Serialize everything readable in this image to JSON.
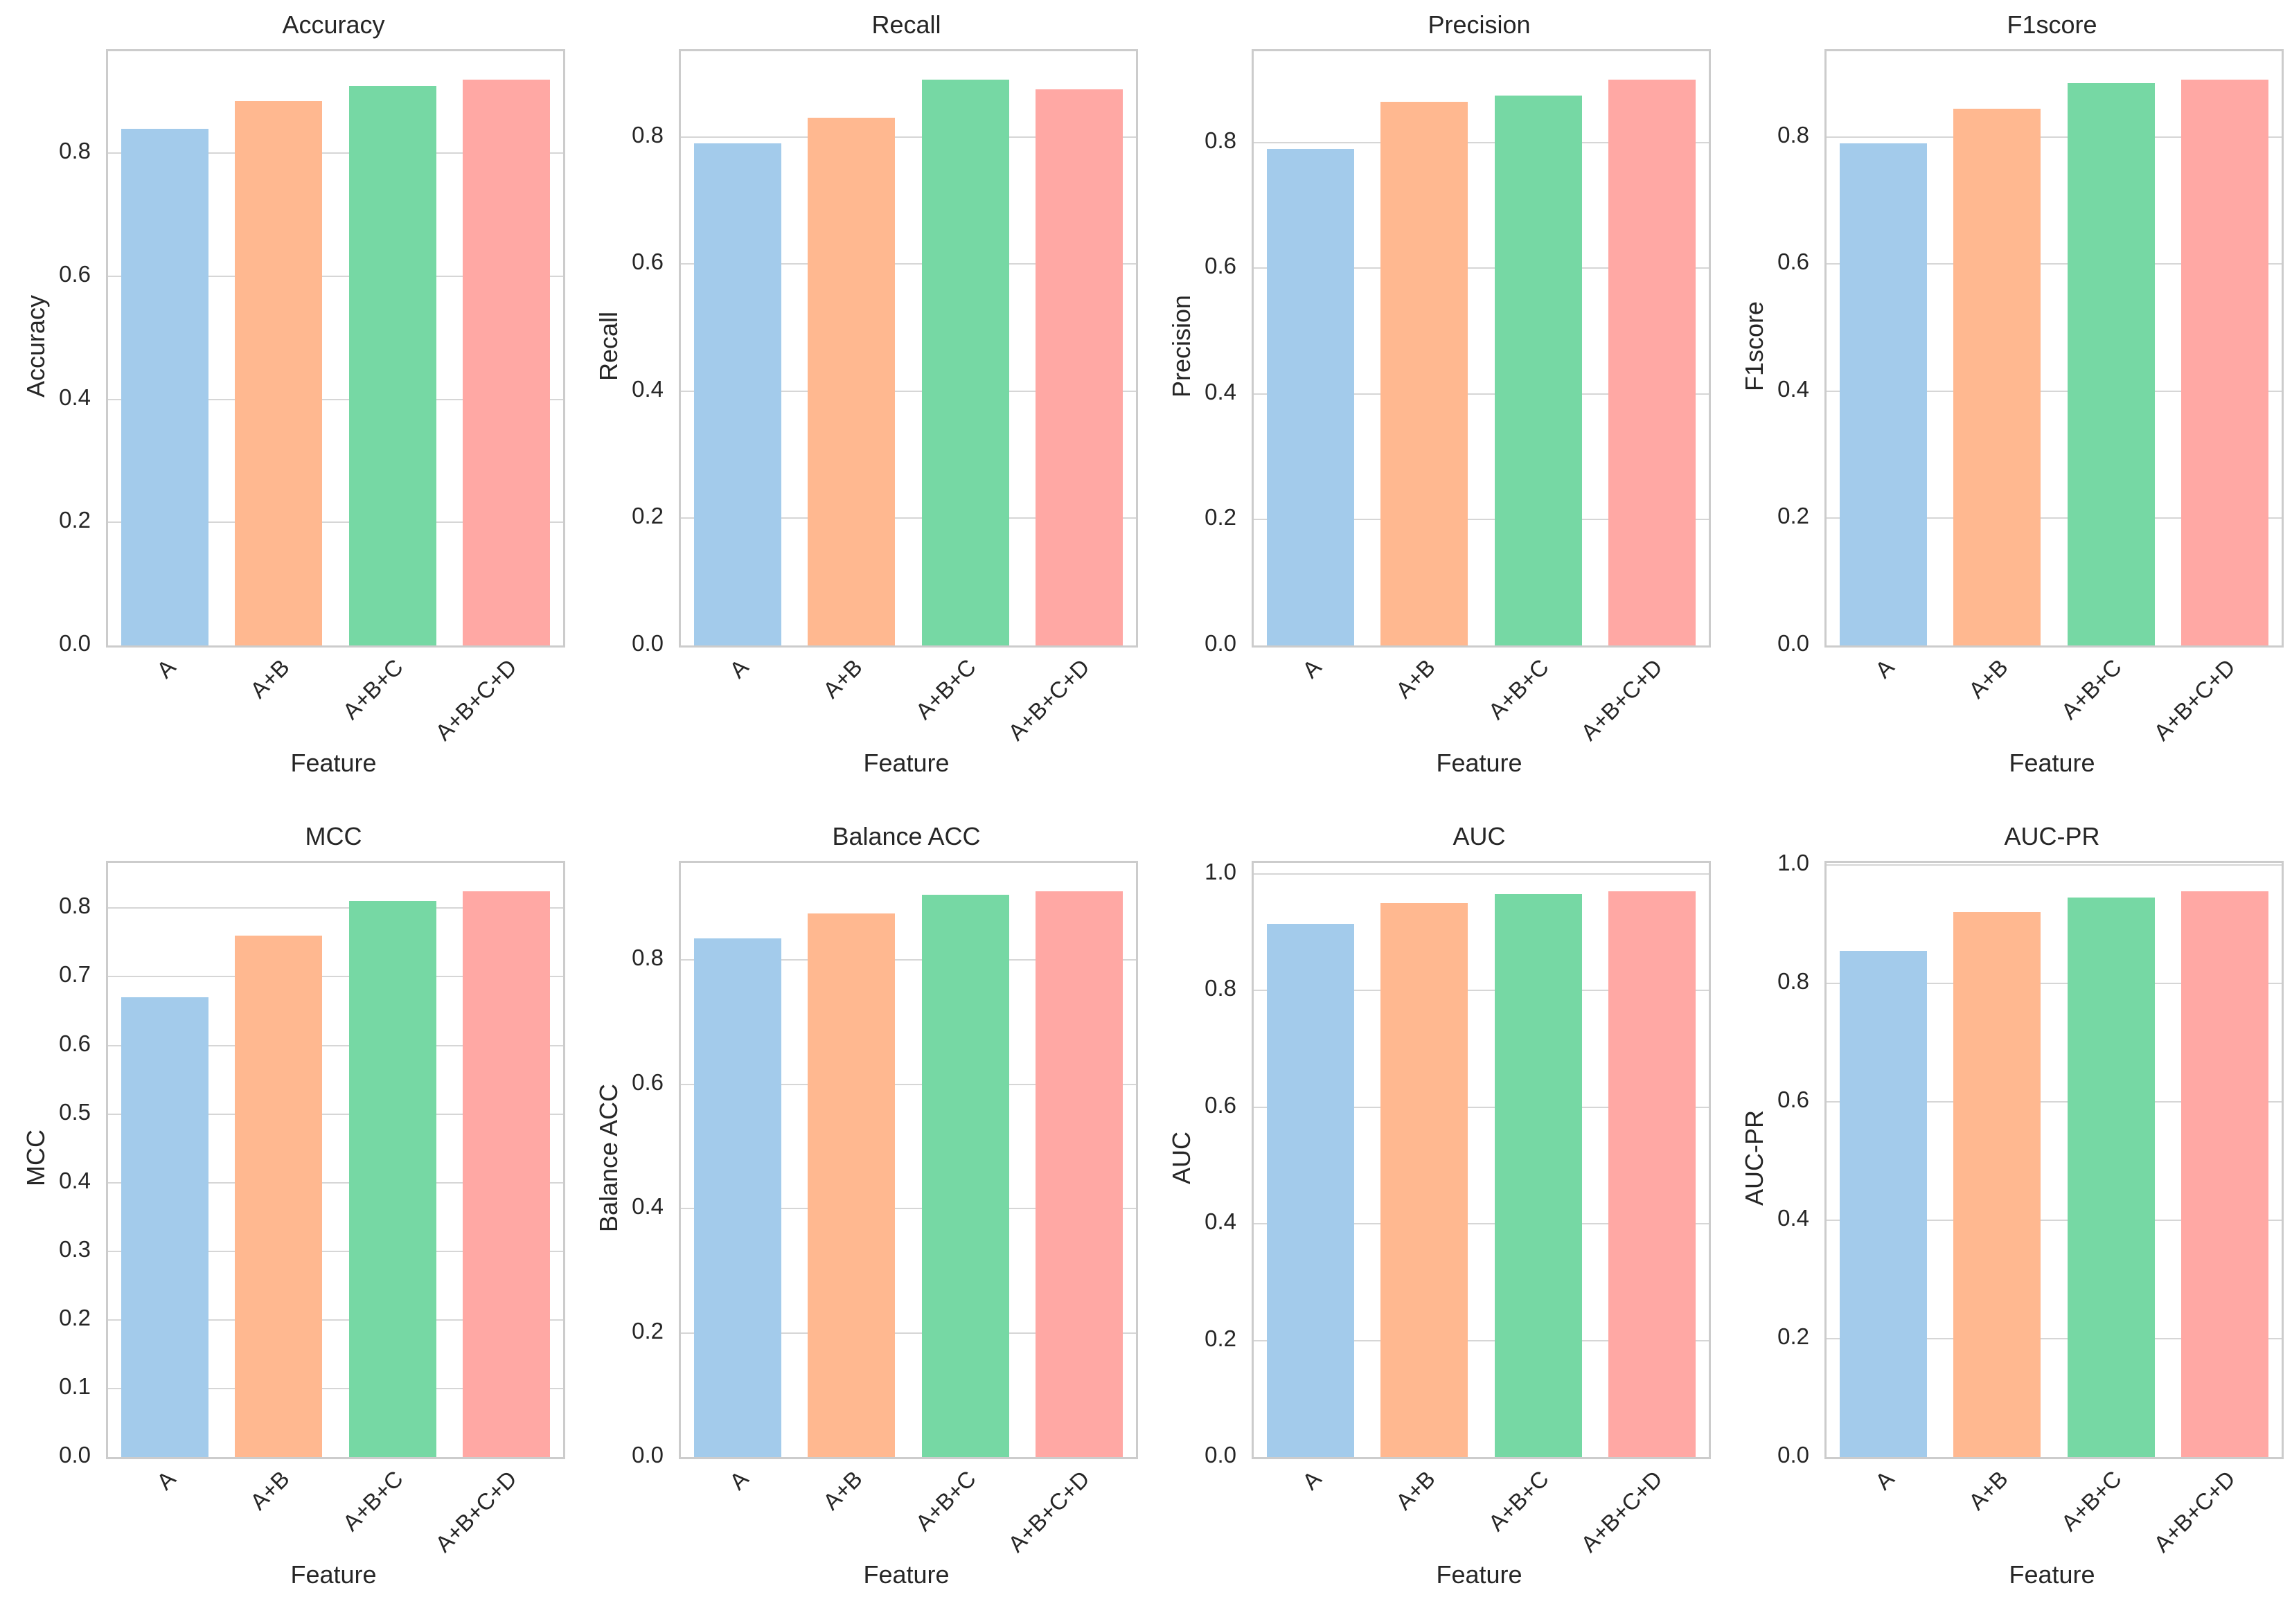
{
  "figure": {
    "background": "#ffffff",
    "grid_color": "#d6d6d6",
    "spine_color": "#cccccc",
    "text_color": "#262626",
    "bar_colors": [
      "#a3cbeb",
      "#ffb890",
      "#76d8a4",
      "#ffa8a4"
    ]
  },
  "chart_data": [
    {
      "type": "bar",
      "title": "Accuracy",
      "xlabel": "Feature",
      "ylabel": "Accuracy",
      "categories": [
        "A",
        "A+B",
        "A+B+C",
        "A+B+C+D"
      ],
      "values": [
        0.84,
        0.885,
        0.91,
        0.92
      ],
      "ylim": [
        0,
        0.966
      ],
      "yticks": [
        0.0,
        0.2,
        0.4,
        0.6,
        0.8
      ],
      "grid": true,
      "legend": null,
      "xtick_rotation": 45
    },
    {
      "type": "bar",
      "title": "Recall",
      "xlabel": "Feature",
      "ylabel": "Recall",
      "categories": [
        "A",
        "A+B",
        "A+B+C",
        "A+B+C+D"
      ],
      "values": [
        0.79,
        0.83,
        0.89,
        0.875
      ],
      "ylim": [
        0,
        0.935
      ],
      "yticks": [
        0.0,
        0.2,
        0.4,
        0.6,
        0.8
      ],
      "grid": true,
      "legend": null,
      "xtick_rotation": 45
    },
    {
      "type": "bar",
      "title": "Precision",
      "xlabel": "Feature",
      "ylabel": "Precision",
      "categories": [
        "A",
        "A+B",
        "A+B+C",
        "A+B+C+D"
      ],
      "values": [
        0.79,
        0.865,
        0.875,
        0.9
      ],
      "ylim": [
        0,
        0.945
      ],
      "yticks": [
        0.0,
        0.2,
        0.4,
        0.6,
        0.8
      ],
      "grid": true,
      "legend": null,
      "xtick_rotation": 45
    },
    {
      "type": "bar",
      "title": "F1score",
      "xlabel": "Feature",
      "ylabel": "F1score",
      "categories": [
        "A",
        "A+B",
        "A+B+C",
        "A+B+C+D"
      ],
      "values": [
        0.79,
        0.845,
        0.885,
        0.89
      ],
      "ylim": [
        0,
        0.935
      ],
      "yticks": [
        0.0,
        0.2,
        0.4,
        0.6,
        0.8
      ],
      "grid": true,
      "legend": null,
      "xtick_rotation": 45
    },
    {
      "type": "bar",
      "title": "MCC",
      "xlabel": "Feature",
      "ylabel": "MCC",
      "categories": [
        "A",
        "A+B",
        "A+B+C",
        "A+B+C+D"
      ],
      "values": [
        0.67,
        0.76,
        0.81,
        0.825
      ],
      "ylim": [
        0,
        0.866
      ],
      "yticks": [
        0.0,
        0.1,
        0.2,
        0.3,
        0.4,
        0.5,
        0.6,
        0.7,
        0.8
      ],
      "grid": true,
      "legend": null,
      "xtick_rotation": 45
    },
    {
      "type": "bar",
      "title": "Balance ACC",
      "xlabel": "Feature",
      "ylabel": "Balance ACC",
      "categories": [
        "A",
        "A+B",
        "A+B+C",
        "A+B+C+D"
      ],
      "values": [
        0.835,
        0.875,
        0.905,
        0.91
      ],
      "ylim": [
        0,
        0.956
      ],
      "yticks": [
        0.0,
        0.2,
        0.4,
        0.6,
        0.8
      ],
      "grid": true,
      "legend": null,
      "xtick_rotation": 45
    },
    {
      "type": "bar",
      "title": "AUC",
      "xlabel": "Feature",
      "ylabel": "AUC",
      "categories": [
        "A",
        "A+B",
        "A+B+C",
        "A+B+C+D"
      ],
      "values": [
        0.915,
        0.95,
        0.965,
        0.97
      ],
      "ylim": [
        0,
        1.019
      ],
      "yticks": [
        0.0,
        0.2,
        0.4,
        0.6,
        0.8,
        1.0
      ],
      "grid": true,
      "legend": null,
      "xtick_rotation": 45
    },
    {
      "type": "bar",
      "title": "AUC-PR",
      "xlabel": "Feature",
      "ylabel": "AUC-PR",
      "categories": [
        "A",
        "A+B",
        "A+B+C",
        "A+B+C+D"
      ],
      "values": [
        0.855,
        0.92,
        0.945,
        0.955
      ],
      "ylim": [
        0,
        1.003
      ],
      "yticks": [
        0.0,
        0.2,
        0.4,
        0.6,
        0.8,
        1.0
      ],
      "grid": true,
      "legend": null,
      "xtick_rotation": 45
    }
  ]
}
